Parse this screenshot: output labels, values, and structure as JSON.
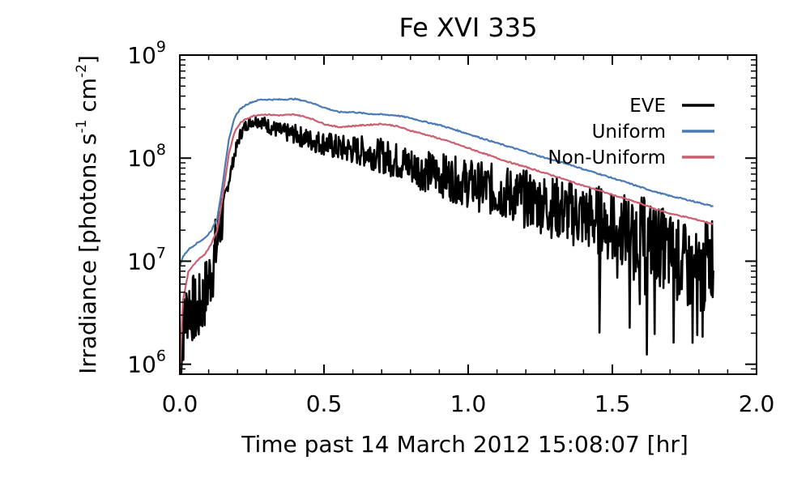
{
  "chart_data": {
    "type": "line",
    "title": "Fe XVI 335",
    "xlabel": "Time past 14 March 2012 15:08:07 [hr]",
    "ylabel_parts": {
      "pre": "Irradiance [photons s",
      "exp1": "-1",
      "mid": " cm",
      "exp2": "-2",
      "post": "]"
    },
    "yscale": "log",
    "xlim": [
      0.0,
      2.0
    ],
    "ylim": [
      800000,
      1000000000
    ],
    "x_ticks": [
      {
        "value": 0.0,
        "label": "0.0"
      },
      {
        "value": 0.5,
        "label": "0.5"
      },
      {
        "value": 1.0,
        "label": "1.0"
      },
      {
        "value": 1.5,
        "label": "1.5"
      },
      {
        "value": 2.0,
        "label": "2.0"
      }
    ],
    "y_ticks": [
      {
        "value": 1000000,
        "base": "10",
        "exp": "6"
      },
      {
        "value": 10000000,
        "base": "10",
        "exp": "7"
      },
      {
        "value": 100000000,
        "base": "10",
        "exp": "8"
      },
      {
        "value": 1000000000,
        "base": "10",
        "exp": "9"
      }
    ],
    "legend": {
      "placement": "top-right"
    },
    "series": [
      {
        "name": "EVE",
        "color": "#000000",
        "noisy": true,
        "x": [
          0.0,
          0.01,
          0.03,
          0.06,
          0.09,
          0.11,
          0.13,
          0.15,
          0.17,
          0.19,
          0.21,
          0.23,
          0.25,
          0.28,
          0.3,
          0.35,
          0.4,
          0.45,
          0.5,
          0.55,
          0.6,
          0.65,
          0.7,
          0.75,
          0.8,
          0.85,
          0.9,
          0.95,
          1.0,
          1.05,
          1.1,
          1.15,
          1.2,
          1.25,
          1.3,
          1.35,
          1.4,
          1.45,
          1.5,
          1.55,
          1.6,
          1.65,
          1.7,
          1.75,
          1.8,
          1.85
        ],
        "y": [
          1000000,
          2000000,
          4000000,
          3000000,
          5000000,
          8000000,
          15000000,
          35000000,
          60000000,
          110000000,
          170000000,
          210000000,
          230000000,
          230000000,
          210000000,
          180000000,
          170000000,
          150000000,
          140000000,
          125000000,
          120000000,
          115000000,
          105000000,
          95000000,
          85000000,
          75000000,
          70000000,
          62000000,
          57000000,
          52000000,
          48000000,
          44000000,
          40000000,
          37000000,
          33000000,
          30000000,
          27000000,
          25000000,
          22000000,
          20000000,
          18000000,
          15000000,
          12000000,
          9000000,
          7000000,
          12000000
        ]
      },
      {
        "name": "Uniform",
        "color": "#4a7ab5",
        "noisy": false,
        "x": [
          0.0,
          0.01,
          0.03,
          0.06,
          0.09,
          0.11,
          0.13,
          0.15,
          0.17,
          0.19,
          0.21,
          0.23,
          0.25,
          0.28,
          0.3,
          0.35,
          0.4,
          0.45,
          0.5,
          0.55,
          0.6,
          0.65,
          0.7,
          0.75,
          0.8,
          0.85,
          0.9,
          0.95,
          1.0,
          1.05,
          1.1,
          1.15,
          1.2,
          1.25,
          1.3,
          1.35,
          1.4,
          1.45,
          1.5,
          1.55,
          1.6,
          1.65,
          1.7,
          1.75,
          1.8,
          1.85
        ],
        "y": [
          9000000,
          11000000,
          13000000,
          15000000,
          17000000,
          20000000,
          26000000,
          60000000,
          150000000,
          250000000,
          300000000,
          330000000,
          350000000,
          370000000,
          370000000,
          370000000,
          375000000,
          350000000,
          310000000,
          280000000,
          280000000,
          270000000,
          265000000,
          260000000,
          245000000,
          225000000,
          210000000,
          190000000,
          172000000,
          155000000,
          140000000,
          127000000,
          115000000,
          104000000,
          95000000,
          87000000,
          78000000,
          71000000,
          64000000,
          58000000,
          52000000,
          47000000,
          43000000,
          40000000,
          37000000,
          34000000
        ]
      },
      {
        "name": "Non-Uniform",
        "color": "#cc5f6f",
        "noisy": false,
        "x": [
          0.0,
          0.01,
          0.03,
          0.06,
          0.09,
          0.11,
          0.13,
          0.15,
          0.17,
          0.19,
          0.21,
          0.23,
          0.25,
          0.28,
          0.3,
          0.35,
          0.4,
          0.45,
          0.5,
          0.55,
          0.6,
          0.65,
          0.7,
          0.75,
          0.8,
          0.85,
          0.9,
          0.95,
          1.0,
          1.05,
          1.1,
          1.15,
          1.2,
          1.25,
          1.3,
          1.35,
          1.4,
          1.45,
          1.5,
          1.55,
          1.6,
          1.65,
          1.7,
          1.75,
          1.8,
          1.85
        ],
        "y": [
          800000,
          4000000,
          8000000,
          10000000,
          12000000,
          15000000,
          20000000,
          45000000,
          110000000,
          180000000,
          220000000,
          240000000,
          255000000,
          265000000,
          265000000,
          260000000,
          265000000,
          245000000,
          215000000,
          200000000,
          205000000,
          210000000,
          215000000,
          205000000,
          185000000,
          170000000,
          155000000,
          140000000,
          125000000,
          112000000,
          100000000,
          90000000,
          82000000,
          74000000,
          67000000,
          60000000,
          54000000,
          49000000,
          44000000,
          40000000,
          36000000,
          32000000,
          29000000,
          27000000,
          25000000,
          23000000
        ]
      }
    ]
  }
}
